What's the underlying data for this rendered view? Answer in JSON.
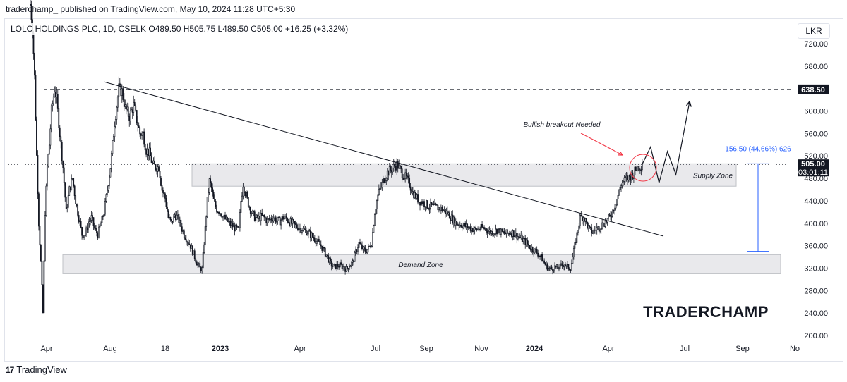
{
  "caption": "traderchamp_ published on TradingView.com, May 10, 2024 11:28 UTC+5:30",
  "symbol_line": "LOLC HOLDINGS PLC, 1D, CSELK  O489.50  H505.75  L489.50  C505.00  +16.25 (+3.32%)",
  "currency_button": "LKR",
  "brand": "TRADERCHAMP",
  "footer": {
    "logo": "17",
    "name": "TradingView"
  },
  "colors": {
    "candle": "#131722",
    "measure": "#2962ff",
    "arrow_red": "#f23645",
    "zone_fill": "#e9e9ec"
  },
  "chart_data": {
    "type": "candlestick",
    "title": "LOLC HOLDINGS PLC, 1D, CSELK",
    "ylim": [
      180,
      760
    ],
    "y_ticks": [
      "720.00",
      "680.00",
      "640.00",
      "600.00",
      "560.00",
      "520.00",
      "480.00",
      "440.00",
      "400.00",
      "360.00",
      "320.00",
      "280.00",
      "240.00",
      "200.00"
    ],
    "x_ticks": [
      "Apr",
      "Aug",
      "18",
      "2023",
      "Apr",
      "Jul",
      "Sep",
      "Nov",
      "2024",
      "Apr",
      "Jul",
      "Sep",
      "No"
    ],
    "ohlc_last": {
      "open": 489.5,
      "high": 505.75,
      "low": 489.5,
      "close": 505.0,
      "change": "+16.25",
      "change_pct": "+3.32%"
    },
    "price_label": "505.00",
    "countdown": "03:01:11",
    "resistance_label": "638.50",
    "resistance_level": 638.5,
    "supply_zone": {
      "label": "Supply Zone",
      "low": 466,
      "high": 506
    },
    "demand_zone": {
      "label": "Demand Zone",
      "low": 310,
      "high": 344
    },
    "measure": {
      "label": "156.50 (44.66%) 626",
      "from": 350,
      "to": 506
    },
    "annotation": "Bullish breakout Needed",
    "path": [
      [
        0,
        790
      ],
      [
        2,
        750
      ],
      [
        4,
        660
      ],
      [
        6,
        520
      ],
      [
        8,
        400
      ],
      [
        10,
        330
      ],
      [
        12,
        240
      ],
      [
        14,
        420
      ],
      [
        16,
        500
      ],
      [
        18,
        540
      ],
      [
        20,
        600
      ],
      [
        23,
        640
      ],
      [
        25,
        620
      ],
      [
        28,
        560
      ],
      [
        31,
        500
      ],
      [
        34,
        420
      ],
      [
        37,
        460
      ],
      [
        40,
        480
      ],
      [
        43,
        440
      ],
      [
        46,
        410
      ],
      [
        49,
        380
      ],
      [
        52,
        380
      ],
      [
        55,
        400
      ],
      [
        58,
        410
      ],
      [
        61,
        390
      ],
      [
        64,
        380
      ],
      [
        67,
        400
      ],
      [
        70,
        420
      ],
      [
        73,
        460
      ],
      [
        76,
        500
      ],
      [
        80,
        580
      ],
      [
        84,
        640
      ],
      [
        87,
        635
      ],
      [
        90,
        605
      ],
      [
        94,
        590
      ],
      [
        98,
        610
      ],
      [
        101,
        585
      ],
      [
        104,
        560
      ],
      [
        107,
        560
      ],
      [
        110,
        530
      ],
      [
        113,
        525
      ],
      [
        116,
        505
      ],
      [
        119,
        500
      ],
      [
        122,
        500
      ],
      [
        125,
        460
      ],
      [
        128,
        445
      ],
      [
        131,
        410
      ],
      [
        134,
        400
      ],
      [
        137,
        415
      ],
      [
        140,
        410
      ],
      [
        143,
        395
      ],
      [
        146,
        380
      ],
      [
        149,
        370
      ],
      [
        152,
        360
      ],
      [
        155,
        345
      ],
      [
        158,
        330
      ],
      [
        161,
        320
      ],
      [
        163,
        318
      ],
      [
        166,
        390
      ],
      [
        168,
        440
      ],
      [
        170,
        475
      ],
      [
        172,
        462
      ],
      [
        174,
        440
      ],
      [
        177,
        425
      ],
      [
        180,
        420
      ],
      [
        183,
        412
      ],
      [
        186,
        405
      ],
      [
        189,
        400
      ],
      [
        192,
        395
      ],
      [
        195,
        390
      ],
      [
        198,
        388
      ],
      [
        200,
        440
      ],
      [
        202,
        470
      ],
      [
        204,
        455
      ],
      [
        207,
        435
      ],
      [
        210,
        420
      ],
      [
        213,
        410
      ],
      [
        216,
        408
      ],
      [
        219,
        412
      ],
      [
        222,
        410
      ],
      [
        225,
        404
      ],
      [
        228,
        408
      ],
      [
        231,
        410
      ],
      [
        234,
        405
      ],
      [
        237,
        404
      ],
      [
        240,
        410
      ],
      [
        243,
        408
      ],
      [
        246,
        402
      ],
      [
        249,
        400
      ],
      [
        252,
        395
      ],
      [
        255,
        392
      ],
      [
        258,
        390
      ],
      [
        261,
        386
      ],
      [
        264,
        383
      ],
      [
        267,
        378
      ],
      [
        270,
        372
      ],
      [
        273,
        366
      ],
      [
        276,
        360
      ],
      [
        279,
        350
      ],
      [
        282,
        340
      ],
      [
        285,
        328
      ],
      [
        288,
        322
      ],
      [
        291,
        324
      ],
      [
        294,
        325
      ],
      [
        297,
        322
      ],
      [
        300,
        318
      ],
      [
        303,
        325
      ],
      [
        306,
        330
      ],
      [
        309,
        348
      ],
      [
        312,
        365
      ],
      [
        315,
        355
      ],
      [
        318,
        350
      ],
      [
        321,
        355
      ],
      [
        324,
        365
      ],
      [
        327,
        420
      ],
      [
        330,
        450
      ],
      [
        333,
        465
      ],
      [
        336,
        480
      ],
      [
        339,
        490
      ],
      [
        342,
        495
      ],
      [
        345,
        500
      ],
      [
        348,
        505
      ],
      [
        351,
        496
      ],
      [
        354,
        486
      ],
      [
        357,
        480
      ],
      [
        360,
        470
      ],
      [
        363,
        455
      ],
      [
        366,
        448
      ],
      [
        369,
        440
      ],
      [
        372,
        438
      ],
      [
        375,
        435
      ],
      [
        378,
        430
      ],
      [
        381,
        430
      ],
      [
        384,
        428
      ],
      [
        387,
        428
      ],
      [
        390,
        426
      ],
      [
        393,
        422
      ],
      [
        396,
        418
      ],
      [
        399,
        412
      ],
      [
        402,
        405
      ],
      [
        405,
        400
      ],
      [
        408,
        398
      ],
      [
        411,
        396
      ],
      [
        414,
        394
      ],
      [
        417,
        392
      ],
      [
        420,
        390
      ],
      [
        423,
        388
      ],
      [
        426,
        390
      ],
      [
        429,
        392
      ],
      [
        432,
        390
      ],
      [
        435,
        386
      ],
      [
        438,
        384
      ],
      [
        441,
        386
      ],
      [
        444,
        388
      ],
      [
        447,
        384
      ],
      [
        450,
        382
      ],
      [
        453,
        382
      ],
      [
        456,
        384
      ],
      [
        459,
        382
      ],
      [
        462,
        378
      ],
      [
        465,
        374
      ],
      [
        468,
        370
      ],
      [
        471,
        365
      ],
      [
        474,
        358
      ],
      [
        477,
        354
      ],
      [
        480,
        350
      ],
      [
        483,
        344
      ],
      [
        486,
        336
      ],
      [
        489,
        326
      ],
      [
        492,
        320
      ],
      [
        495,
        318
      ],
      [
        498,
        322
      ],
      [
        501,
        320
      ],
      [
        504,
        324
      ],
      [
        507,
        328
      ],
      [
        510,
        322
      ],
      [
        513,
        320
      ],
      [
        516,
        350
      ],
      [
        519,
        380
      ],
      [
        522,
        410
      ],
      [
        525,
        412
      ],
      [
        528,
        400
      ],
      [
        531,
        388
      ],
      [
        534,
        384
      ],
      [
        537,
        390
      ],
      [
        540,
        392
      ],
      [
        543,
        398
      ],
      [
        546,
        402
      ],
      [
        549,
        408
      ],
      [
        552,
        418
      ],
      [
        555,
        432
      ],
      [
        558,
        450
      ],
      [
        561,
        470
      ],
      [
        564,
        476
      ],
      [
        567,
        480
      ],
      [
        570,
        484
      ],
      [
        573,
        490
      ],
      [
        576,
        498
      ],
      [
        579,
        502
      ],
      [
        581,
        505
      ]
    ],
    "projection": [
      [
        581,
        505
      ],
      [
        589,
        536
      ],
      [
        597,
        472
      ],
      [
        605,
        528
      ],
      [
        613,
        487
      ],
      [
        626,
        617
      ]
    ]
  }
}
